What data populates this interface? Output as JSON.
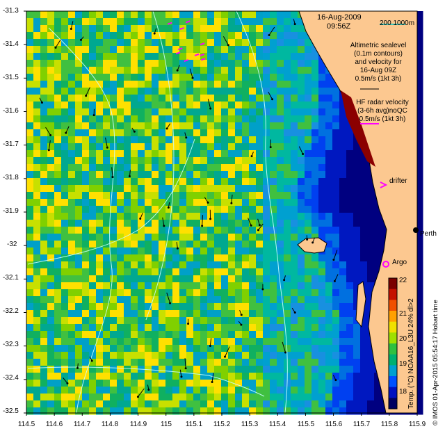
{
  "header": {
    "date": "16-Aug-2009",
    "time": "09:56Z",
    "scale_label": "200  1000m"
  },
  "legend": {
    "altimetry_lines": [
      "Altimetric sealevel",
      "(0.1m contours)",
      "and velocity for",
      "16-Aug 09Z",
      "0.5m/s (1kt 3h)"
    ],
    "hf_radar_lines": [
      "HF radar velocity",
      "(3-6h avg)noQC",
      "0.5m/s (1kt 3h)"
    ],
    "drifter_label": "drifter",
    "argo_label": "Argo",
    "perth_label": "Perth"
  },
  "colorbar": {
    "title": "Temp. (°C) NOAA16_L3U 24% dl>2",
    "ticks": [
      "22",
      "21",
      "20",
      "19",
      "18"
    ],
    "colors": [
      "#7a0000",
      "#c41000",
      "#f05000",
      "#ffa000",
      "#f0e000",
      "#a0e000",
      "#30c040",
      "#00b070",
      "#00a0d0",
      "#0050ff",
      "#0010c0",
      "#000060"
    ]
  },
  "credit": "© IMOS 01-Apr-2015 05:54:17 Hobart time",
  "axes": {
    "y_ticks": [
      "-31.3",
      "-31.4",
      "-31.5",
      "-31.6",
      "-31.7",
      "-31.8",
      "-31.9",
      "-32",
      "-32.1",
      "-32.2",
      "-32.3",
      "-32.4",
      "-32.5"
    ],
    "x_ticks": [
      "114.5",
      "114.6",
      "114.7",
      "114.8",
      "114.9",
      "115",
      "115.1",
      "115.2",
      "115.3",
      "115.4",
      "115.5",
      "115.6",
      "115.7",
      "115.8",
      "115.9"
    ],
    "lon_range": [
      114.5,
      115.9
    ],
    "lat_range": [
      -32.5,
      -31.3
    ]
  },
  "colors": {
    "land": "#fcc890",
    "deep_water": "#000080",
    "radar_vector": "#ff00ff",
    "contour": "#c8ffff"
  }
}
